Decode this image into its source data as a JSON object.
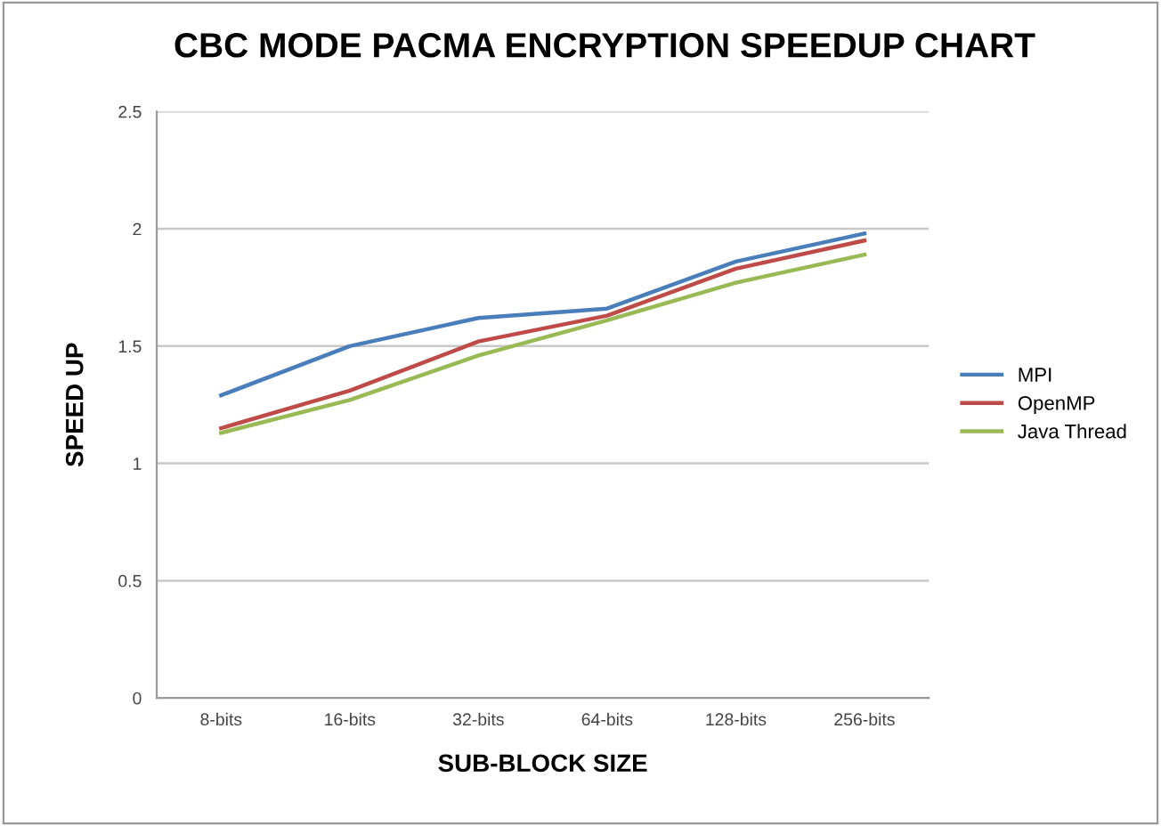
{
  "chart_data": {
    "type": "line",
    "title": "CBC MODE PACMA ENCRYPTION SPEEDUP CHART",
    "xlabel": "SUB-BLOCK SIZE",
    "ylabel": "SPEED UP",
    "categories": [
      "8-bits",
      "16-bits",
      "32-bits",
      "64-bits",
      "128-bits",
      "256-bits"
    ],
    "series": [
      {
        "name": "MPI",
        "color": "#4a7ebb",
        "values": [
          1.29,
          1.5,
          1.62,
          1.66,
          1.86,
          1.98
        ]
      },
      {
        "name": "OpenMP",
        "color": "#be4b48",
        "values": [
          1.15,
          1.31,
          1.52,
          1.63,
          1.83,
          1.95
        ]
      },
      {
        "name": "Java Thread",
        "color": "#98b954",
        "values": [
          1.13,
          1.27,
          1.46,
          1.61,
          1.77,
          1.89
        ]
      }
    ],
    "ylim": [
      0,
      2.5
    ],
    "yticks": [
      0,
      0.5,
      1,
      1.5,
      2,
      2.5
    ],
    "grid": "y",
    "legend": "right"
  }
}
